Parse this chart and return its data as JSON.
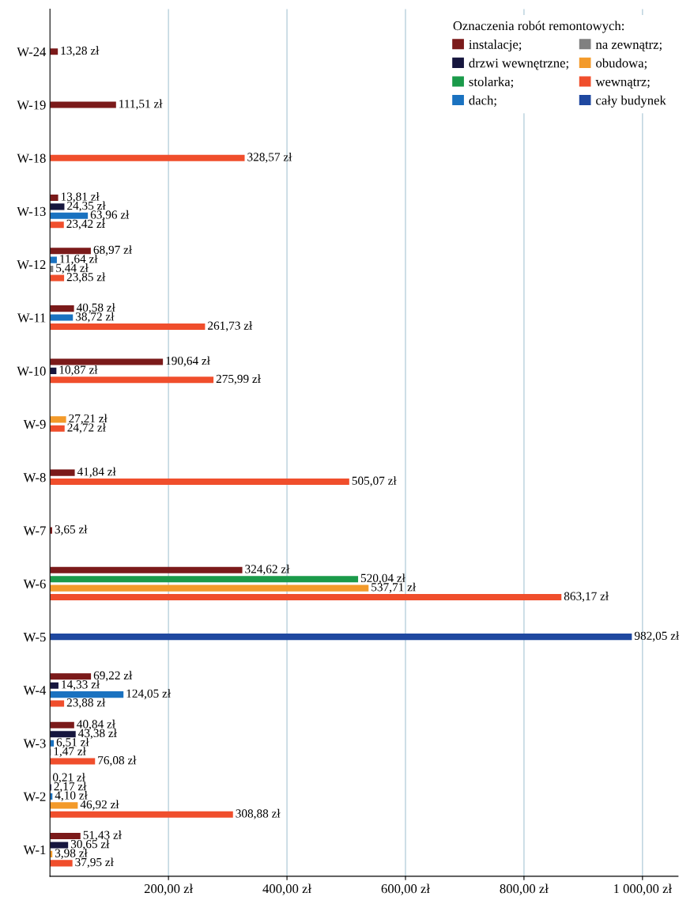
{
  "chart_data": {
    "type": "bar",
    "orientation": "horizontal",
    "legend_title": "Oznaczenia robót remontowych:",
    "categories": [
      "W-24",
      "W-19",
      "W-18",
      "W-13",
      "W-12",
      "W-11",
      "W-10",
      "W-9",
      "W-8",
      "W-7",
      "W-6",
      "W-5",
      "W-4",
      "W-3",
      "W-2",
      "W-1"
    ],
    "series": [
      {
        "name": "instalacje;",
        "color": "#7b1a1a",
        "values": [
          13.28,
          111.51,
          null,
          13.81,
          68.97,
          40.58,
          190.64,
          null,
          41.84,
          3.65,
          324.62,
          null,
          69.22,
          40.84,
          0.21,
          51.43
        ],
        "value_labels": [
          "13,28 zł",
          "111,51 zł",
          null,
          "13,81 zł",
          "68,97 zł",
          "40,58 zł",
          "190,64 zł",
          null,
          "41,84 zł",
          "3,65 zł",
          "324,62 zł",
          null,
          "69,22 zł",
          "40,84 zł",
          "0,21 zł",
          "51,43 zł"
        ]
      },
      {
        "name": "drzwi wewnętrzne;",
        "color": "#16163e",
        "values": [
          null,
          null,
          null,
          24.35,
          null,
          null,
          10.87,
          null,
          null,
          null,
          null,
          null,
          14.33,
          43.38,
          2.17,
          30.65
        ],
        "value_labels": [
          null,
          null,
          null,
          "24,35 zł",
          null,
          null,
          "10,87 zł",
          null,
          null,
          null,
          null,
          null,
          "14,33 zł",
          "43,38 zł",
          "2,17 zł",
          "30,65 zł"
        ]
      },
      {
        "name": "stolarka;",
        "color": "#1a9a4a",
        "values": [
          null,
          null,
          null,
          null,
          null,
          null,
          null,
          null,
          null,
          null,
          520.04,
          null,
          null,
          null,
          null,
          null
        ],
        "value_labels": [
          null,
          null,
          null,
          null,
          null,
          null,
          null,
          null,
          null,
          null,
          "520,04 zł",
          null,
          null,
          null,
          null,
          null
        ]
      },
      {
        "name": "dach;",
        "color": "#1a72c0",
        "values": [
          null,
          null,
          null,
          63.96,
          11.64,
          38.72,
          null,
          null,
          null,
          null,
          null,
          null,
          124.05,
          6.51,
          4.1,
          null
        ],
        "value_labels": [
          null,
          null,
          null,
          "63,96 zł",
          "11,64 zł",
          "38,72 zł",
          null,
          null,
          null,
          null,
          null,
          null,
          "124,05 zł",
          "6,51 zł",
          "4,10 zł",
          null
        ]
      },
      {
        "name": "na zewnątrz;",
        "color": "#808080",
        "values": [
          null,
          null,
          null,
          null,
          5.44,
          null,
          null,
          null,
          null,
          null,
          null,
          null,
          null,
          1.47,
          null,
          null
        ],
        "value_labels": [
          null,
          null,
          null,
          null,
          "5,44 zł",
          null,
          null,
          null,
          null,
          null,
          null,
          null,
          null,
          "1,47 zł",
          null,
          null
        ]
      },
      {
        "name": "obudowa;",
        "color": "#f39a2a",
        "values": [
          null,
          null,
          null,
          null,
          null,
          null,
          null,
          27.21,
          null,
          null,
          537.71,
          null,
          null,
          null,
          46.92,
          3.98
        ],
        "value_labels": [
          null,
          null,
          null,
          null,
          null,
          null,
          null,
          "27,21 zł",
          null,
          null,
          "537,71 zł",
          null,
          null,
          null,
          "46,92 zł",
          "3,98 zł"
        ]
      },
      {
        "name": "wewnątrz;",
        "color": "#f04e2c",
        "values": [
          null,
          null,
          328.57,
          23.42,
          23.85,
          261.73,
          275.99,
          24.72,
          505.07,
          null,
          863.17,
          null,
          23.88,
          76.08,
          308.88,
          37.95
        ],
        "value_labels": [
          null,
          null,
          "328,57 zł",
          "23,42 zł",
          "23,85 zł",
          "261,73 zł",
          "275,99 zł",
          "24,72 zł",
          "505,07 zł",
          null,
          "863,17 zł",
          null,
          "23,88 zł",
          "76,08 zł",
          "308,88 zł",
          "37,95 zł"
        ]
      },
      {
        "name": "cały budynek",
        "color": "#1f48a0",
        "values": [
          null,
          null,
          null,
          null,
          null,
          null,
          null,
          null,
          null,
          null,
          null,
          982.05,
          null,
          null,
          null,
          null
        ],
        "value_labels": [
          null,
          null,
          null,
          null,
          null,
          null,
          null,
          null,
          null,
          null,
          null,
          "982,05 zł",
          null,
          null,
          null,
          null
        ]
      }
    ],
    "xlim": [
      0,
      1060
    ],
    "xticks": [
      {
        "value": 200,
        "label": "200,00 zł"
      },
      {
        "value": 400,
        "label": "400,00 zł"
      },
      {
        "value": 600,
        "label": "600,00 zł"
      },
      {
        "value": 800,
        "label": "800,00 zł"
      },
      {
        "value": 1000,
        "label": "1 000,00 zł"
      }
    ],
    "grid": "x",
    "legend": "top right"
  }
}
